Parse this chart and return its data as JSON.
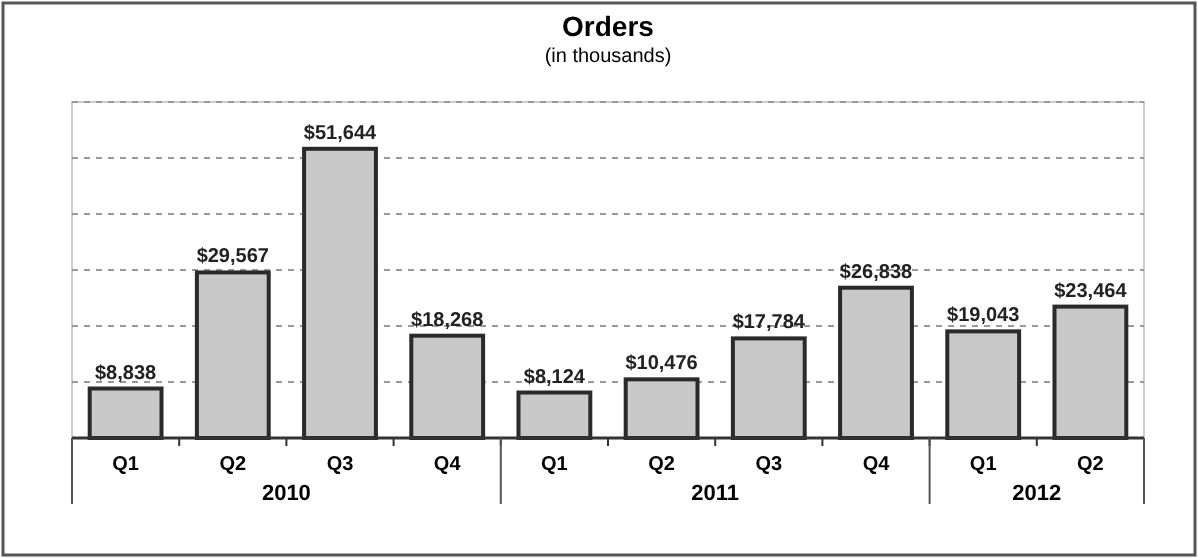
{
  "chart_data": {
    "type": "bar",
    "title": "Orders",
    "subtitle": "(in thousands)",
    "categories": [
      "Q1",
      "Q2",
      "Q3",
      "Q4",
      "Q1",
      "Q2",
      "Q3",
      "Q4",
      "Q1",
      "Q2"
    ],
    "values": [
      8838,
      29567,
      51644,
      18268,
      8124,
      10476,
      17784,
      26838,
      19043,
      23464
    ],
    "value_labels": [
      "$8,838",
      "$29,567",
      "$51,644",
      "$18,268",
      "$8,124",
      "$10,476",
      "$17,784",
      "$26,838",
      "$19,043",
      "$23,464"
    ],
    "color": "#c8c8c8",
    "ylim": [
      0,
      60000
    ],
    "yticks": [
      {
        "value": 0,
        "label": null
      },
      {
        "value": 10000,
        "label": null
      },
      {
        "value": 20000,
        "label": null
      },
      {
        "value": 30000,
        "label": null
      },
      {
        "value": 40000,
        "label": null
      },
      {
        "value": 50000,
        "label": null
      },
      {
        "value": 60000,
        "label": null
      }
    ],
    "grid": "y",
    "tick_labels": "x",
    "annotations": [
      "2010",
      "2011",
      "2012"
    ]
  }
}
